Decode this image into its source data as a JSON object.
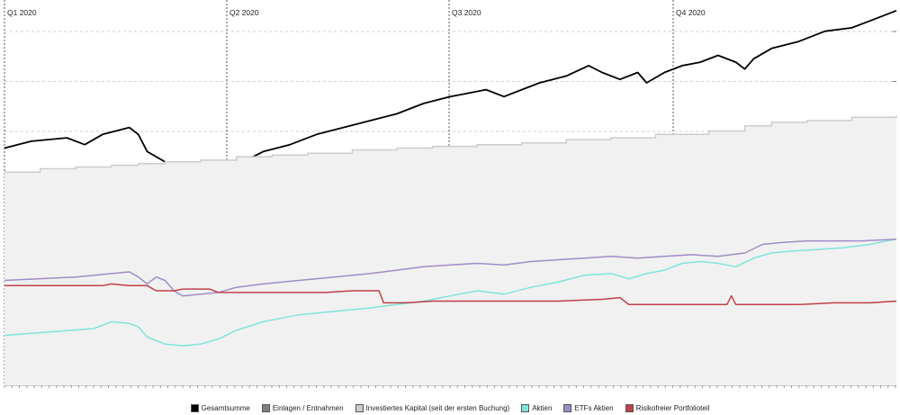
{
  "chart_data": {
    "type": "line",
    "quarters": [
      "Q1 2020",
      "Q2 2020",
      "Q3 2020",
      "Q4 2020"
    ],
    "grid": true,
    "legend_position": "bottom",
    "series": [
      {
        "name": "Gesamtsumme",
        "color": "#000000",
        "style": "line",
        "points": [
          [
            0,
            0.69
          ],
          [
            0.03,
            0.71
          ],
          [
            0.07,
            0.72
          ],
          [
            0.09,
            0.7
          ],
          [
            0.11,
            0.73
          ],
          [
            0.14,
            0.75
          ],
          [
            0.15,
            0.73
          ],
          [
            0.16,
            0.68
          ],
          [
            0.18,
            0.65
          ],
          [
            0.19,
            0.58
          ],
          [
            0.21,
            0.57
          ],
          [
            0.22,
            0.56
          ],
          [
            0.23,
            0.59
          ],
          [
            0.245,
            0.61
          ],
          [
            0.26,
            0.64
          ],
          [
            0.29,
            0.68
          ],
          [
            0.32,
            0.7
          ],
          [
            0.35,
            0.73
          ],
          [
            0.38,
            0.75
          ],
          [
            0.41,
            0.77
          ],
          [
            0.44,
            0.79
          ],
          [
            0.47,
            0.82
          ],
          [
            0.5,
            0.84
          ],
          [
            0.52,
            0.85
          ],
          [
            0.54,
            0.86
          ],
          [
            0.56,
            0.84
          ],
          [
            0.58,
            0.86
          ],
          [
            0.6,
            0.88
          ],
          [
            0.63,
            0.9
          ],
          [
            0.655,
            0.93
          ],
          [
            0.67,
            0.91
          ],
          [
            0.69,
            0.89
          ],
          [
            0.71,
            0.91
          ],
          [
            0.72,
            0.88
          ],
          [
            0.74,
            0.91
          ],
          [
            0.76,
            0.93
          ],
          [
            0.78,
            0.94
          ],
          [
            0.8,
            0.96
          ],
          [
            0.82,
            0.94
          ],
          [
            0.83,
            0.92
          ],
          [
            0.84,
            0.95
          ],
          [
            0.86,
            0.98
          ],
          [
            0.89,
            1.0
          ],
          [
            0.92,
            1.03
          ],
          [
            0.95,
            1.04
          ],
          [
            0.97,
            1.06
          ],
          [
            1.0,
            1.09
          ]
        ]
      },
      {
        "name": "Einlagen / Entnahmen",
        "color": "#808080",
        "style": "bars",
        "points": [
          [
            0.12,
            0.012
          ],
          [
            0.15,
            0.008
          ],
          [
            0.24,
            0.016
          ],
          [
            0.3,
            0.008
          ],
          [
            0.37,
            0.012
          ],
          [
            0.45,
            0.008
          ],
          [
            0.49,
            0.016
          ],
          [
            0.55,
            0.008
          ],
          [
            0.62,
            0.012
          ],
          [
            0.7,
            0.008
          ],
          [
            0.75,
            0.016
          ],
          [
            0.81,
            0.024
          ],
          [
            0.84,
            0.008
          ],
          [
            0.9,
            0.02
          ],
          [
            0.95,
            0.012
          ]
        ]
      },
      {
        "name": "Investiertes Kapital (seit der ersten Buchung)",
        "color": "#cccccc",
        "style": "area-step",
        "points": [
          [
            0,
            0.62
          ],
          [
            0.04,
            0.63
          ],
          [
            0.08,
            0.635
          ],
          [
            0.12,
            0.64
          ],
          [
            0.15,
            0.645
          ],
          [
            0.18,
            0.65
          ],
          [
            0.22,
            0.655
          ],
          [
            0.26,
            0.665
          ],
          [
            0.3,
            0.67
          ],
          [
            0.34,
            0.675
          ],
          [
            0.39,
            0.685
          ],
          [
            0.44,
            0.69
          ],
          [
            0.48,
            0.695
          ],
          [
            0.53,
            0.7
          ],
          [
            0.58,
            0.705
          ],
          [
            0.63,
            0.715
          ],
          [
            0.68,
            0.72
          ],
          [
            0.73,
            0.73
          ],
          [
            0.79,
            0.74
          ],
          [
            0.83,
            0.755
          ],
          [
            0.86,
            0.765
          ],
          [
            0.9,
            0.77
          ],
          [
            0.95,
            0.78
          ],
          [
            1.0,
            0.785
          ]
        ]
      },
      {
        "name": "Aktien",
        "color": "#7fe5dc",
        "style": "line",
        "points": [
          [
            0,
            0.145
          ],
          [
            0.05,
            0.155
          ],
          [
            0.1,
            0.165
          ],
          [
            0.12,
            0.185
          ],
          [
            0.14,
            0.18
          ],
          [
            0.15,
            0.17
          ],
          [
            0.16,
            0.14
          ],
          [
            0.18,
            0.12
          ],
          [
            0.2,
            0.115
          ],
          [
            0.22,
            0.12
          ],
          [
            0.24,
            0.135
          ],
          [
            0.26,
            0.16
          ],
          [
            0.29,
            0.185
          ],
          [
            0.33,
            0.205
          ],
          [
            0.37,
            0.215
          ],
          [
            0.41,
            0.225
          ],
          [
            0.44,
            0.235
          ],
          [
            0.47,
            0.245
          ],
          [
            0.5,
            0.26
          ],
          [
            0.53,
            0.275
          ],
          [
            0.56,
            0.265
          ],
          [
            0.59,
            0.285
          ],
          [
            0.62,
            0.3
          ],
          [
            0.65,
            0.32
          ],
          [
            0.68,
            0.325
          ],
          [
            0.7,
            0.31
          ],
          [
            0.72,
            0.325
          ],
          [
            0.74,
            0.335
          ],
          [
            0.76,
            0.355
          ],
          [
            0.78,
            0.36
          ],
          [
            0.8,
            0.355
          ],
          [
            0.82,
            0.345
          ],
          [
            0.84,
            0.37
          ],
          [
            0.86,
            0.385
          ],
          [
            0.88,
            0.39
          ],
          [
            0.91,
            0.395
          ],
          [
            0.94,
            0.4
          ],
          [
            0.97,
            0.41
          ],
          [
            1.0,
            0.425
          ]
        ]
      },
      {
        "name": "ETFs Aktien",
        "color": "#a08cc8",
        "style": "line",
        "points": [
          [
            0,
            0.305
          ],
          [
            0.04,
            0.31
          ],
          [
            0.08,
            0.315
          ],
          [
            0.12,
            0.325
          ],
          [
            0.14,
            0.33
          ],
          [
            0.15,
            0.315
          ],
          [
            0.16,
            0.295
          ],
          [
            0.17,
            0.315
          ],
          [
            0.18,
            0.305
          ],
          [
            0.19,
            0.275
          ],
          [
            0.2,
            0.26
          ],
          [
            0.22,
            0.265
          ],
          [
            0.24,
            0.27
          ],
          [
            0.26,
            0.285
          ],
          [
            0.29,
            0.295
          ],
          [
            0.33,
            0.305
          ],
          [
            0.37,
            0.315
          ],
          [
            0.41,
            0.325
          ],
          [
            0.44,
            0.335
          ],
          [
            0.47,
            0.345
          ],
          [
            0.5,
            0.35
          ],
          [
            0.53,
            0.355
          ],
          [
            0.56,
            0.35
          ],
          [
            0.59,
            0.36
          ],
          [
            0.62,
            0.365
          ],
          [
            0.65,
            0.37
          ],
          [
            0.68,
            0.375
          ],
          [
            0.71,
            0.37
          ],
          [
            0.74,
            0.375
          ],
          [
            0.77,
            0.38
          ],
          [
            0.8,
            0.375
          ],
          [
            0.83,
            0.385
          ],
          [
            0.85,
            0.41
          ],
          [
            0.87,
            0.415
          ],
          [
            0.9,
            0.42
          ],
          [
            0.93,
            0.42
          ],
          [
            0.96,
            0.42
          ],
          [
            1.0,
            0.425
          ]
        ]
      },
      {
        "name": "Risikofreier Portfolioteil",
        "color": "#c0404a",
        "style": "line",
        "points": [
          [
            0,
            0.29
          ],
          [
            0.06,
            0.29
          ],
          [
            0.11,
            0.29
          ],
          [
            0.12,
            0.295
          ],
          [
            0.14,
            0.29
          ],
          [
            0.16,
            0.29
          ],
          [
            0.17,
            0.275
          ],
          [
            0.19,
            0.275
          ],
          [
            0.2,
            0.28
          ],
          [
            0.22,
            0.28
          ],
          [
            0.23,
            0.28
          ],
          [
            0.24,
            0.27
          ],
          [
            0.3,
            0.27
          ],
          [
            0.36,
            0.27
          ],
          [
            0.39,
            0.275
          ],
          [
            0.42,
            0.275
          ],
          [
            0.425,
            0.24
          ],
          [
            0.45,
            0.24
          ],
          [
            0.48,
            0.245
          ],
          [
            0.52,
            0.245
          ],
          [
            0.57,
            0.245
          ],
          [
            0.62,
            0.245
          ],
          [
            0.67,
            0.25
          ],
          [
            0.69,
            0.255
          ],
          [
            0.7,
            0.235
          ],
          [
            0.74,
            0.235
          ],
          [
            0.78,
            0.235
          ],
          [
            0.81,
            0.235
          ],
          [
            0.815,
            0.26
          ],
          [
            0.82,
            0.235
          ],
          [
            0.86,
            0.235
          ],
          [
            0.89,
            0.235
          ],
          [
            0.93,
            0.24
          ],
          [
            0.97,
            0.24
          ],
          [
            1.0,
            0.245
          ]
        ]
      }
    ]
  }
}
